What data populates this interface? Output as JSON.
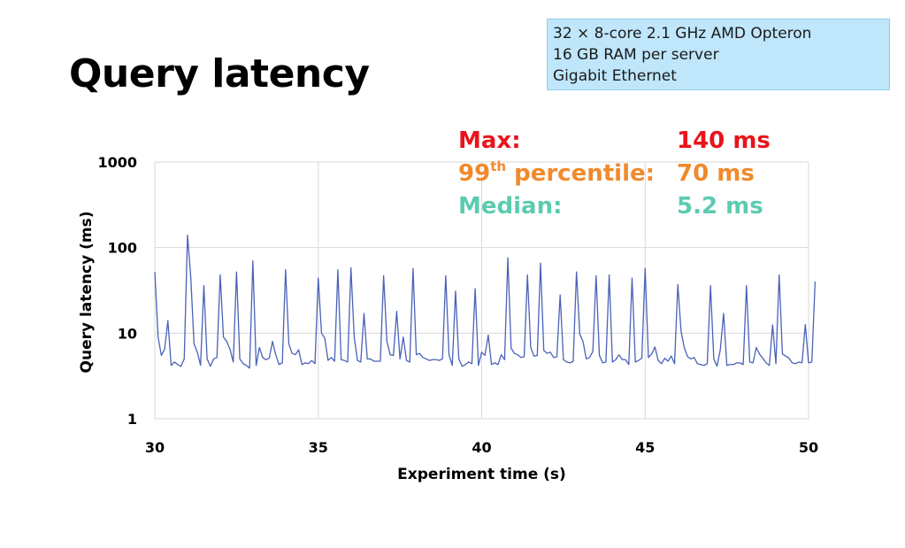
{
  "slide": {
    "title": "Query latency"
  },
  "spec_box": {
    "lines": [
      "32 × 8-core 2.1 GHz AMD Opteron",
      "16 GB RAM per server",
      "Gigabit Ethernet"
    ]
  },
  "stats": {
    "max_label": "Max:",
    "max_value": "140 ms",
    "p99_label_num": "99",
    "p99_label_sup": "th",
    "p99_label_rest": " percentile:",
    "p99_value": "70 ms",
    "median_label": "Median:",
    "median_value": "5.2 ms",
    "colors": {
      "max": "#e8141b",
      "p99": "#f08a2c",
      "median": "#5ccbb0"
    }
  },
  "chart_data": {
    "type": "line",
    "xlabel": "Experiment time (s)",
    "ylabel": "Query latency (ms)",
    "xlim": [
      30,
      50
    ],
    "ylim": [
      1,
      1000
    ],
    "yscale": "log",
    "x_ticks": [
      30,
      35,
      40,
      45,
      50
    ],
    "y_ticks": [
      1,
      10,
      100,
      1000
    ],
    "grid": true,
    "line_color": "#4a62b8",
    "series": [
      {
        "x_start": 30,
        "x_step": 0.1,
        "values": [
          52,
          9,
          5.5,
          6.5,
          14,
          4.2,
          4.6,
          4.3,
          4.1,
          5,
          140,
          45,
          7.5,
          6,
          4.2,
          36,
          5,
          4.1,
          5,
          5.2,
          48,
          9,
          8,
          6.5,
          4.6,
          52,
          5,
          4.4,
          4.2,
          3.9,
          70,
          4.2,
          6.8,
          5.2,
          4.9,
          5.1,
          8,
          5.6,
          4.3,
          4.5,
          55,
          7.5,
          5.8,
          5.6,
          6.4,
          4.3,
          4.5,
          4.4,
          4.8,
          4.4,
          44,
          10,
          8.7,
          4.8,
          5.2,
          4.7,
          55,
          4.9,
          4.8,
          4.6,
          58,
          9,
          4.8,
          4.6,
          17,
          5,
          5,
          4.7,
          4.7,
          4.7,
          47,
          8,
          5.6,
          5.5,
          18,
          5,
          9,
          4.8,
          4.6,
          57,
          5.6,
          5.8,
          5.2,
          5,
          4.8,
          4.9,
          4.9,
          4.8,
          5,
          47,
          5.6,
          4.2,
          31,
          5,
          4.1,
          4.3,
          4.6,
          4.4,
          33,
          4.2,
          6,
          5.5,
          9.5,
          4.3,
          4.5,
          4.3,
          5.6,
          4.9,
          76,
          6.7,
          5.8,
          5.6,
          5.2,
          5.3,
          48,
          6.8,
          5.4,
          5.5,
          66,
          6.3,
          5.8,
          6,
          5.2,
          5.3,
          28,
          4.9,
          4.6,
          4.5,
          4.7,
          52,
          9.8,
          8,
          5,
          5.2,
          6.1,
          47,
          5.5,
          4.5,
          4.6,
          48,
          4.6,
          4.9,
          5.6,
          4.9,
          4.9,
          4.3,
          44,
          4.6,
          4.8,
          5.1,
          57,
          5.2,
          5.7,
          6.9,
          4.8,
          4.4,
          5.1,
          4.7,
          5.4,
          4.4,
          37,
          10.5,
          6.7,
          5.3,
          5,
          5.2,
          4.4,
          4.3,
          4.2,
          4.4,
          36,
          5,
          4.1,
          6.4,
          17,
          4.2,
          4.3,
          4.3,
          4.5,
          4.5,
          4.3,
          36,
          4.6,
          4.5,
          6.8,
          5.7,
          5.1,
          4.5,
          4.2,
          12.5,
          4.4,
          48,
          5.7,
          5.4,
          5.1,
          4.5,
          4.4,
          4.6,
          4.5,
          12.6,
          4.5,
          4.6,
          40
        ]
      }
    ]
  }
}
